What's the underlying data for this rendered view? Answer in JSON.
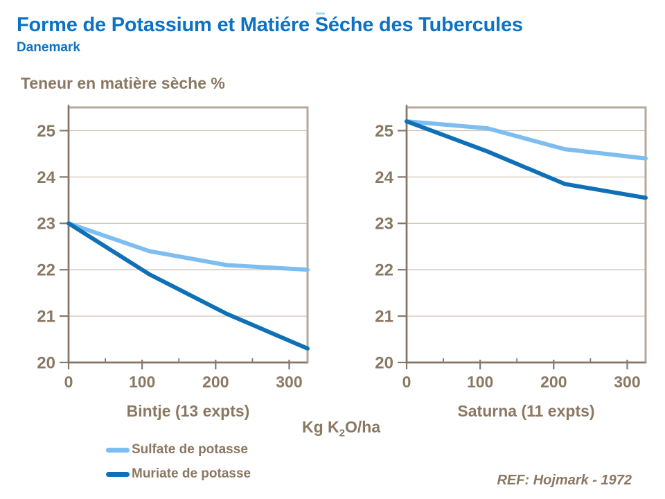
{
  "header": {
    "title": "Forme de Potassium et Matiére Séche des Tubercules",
    "subtitle": "Danemark"
  },
  "y_axis_title": "Teneur en matière sèche %",
  "x_axis_title": {
    "pre": "Kg K",
    "sub": "2",
    "post": "O/ha"
  },
  "legend": [
    {
      "label": "Sulfate de potasse",
      "color": "#7dbdf0"
    },
    {
      "label": "Muriate de potasse",
      "color": "#0f70b8"
    }
  ],
  "footnote": "REF: Hojmark - 1972",
  "colors": {
    "title_blue": "#0d72c4",
    "text": "#8a7862",
    "frame": "#b5a99b",
    "grid": "#cdc3b5",
    "axis": "#87776a",
    "sulfate": "#7dbdf0",
    "muriate": "#0f70b8",
    "background": "#ffffff"
  },
  "chart_data": [
    {
      "type": "line",
      "title": "Bintje (13 expts)",
      "x": [
        0,
        110,
        215,
        325
      ],
      "series": [
        {
          "key": "sulfate",
          "name": "Sulfate de potasse",
          "color": "#7dbdf0",
          "values": [
            23.0,
            22.4,
            22.1,
            22.0
          ]
        },
        {
          "key": "muriate",
          "name": "Muriate de potasse",
          "color": "#0f70b8",
          "values": [
            23.0,
            21.9,
            21.05,
            20.3
          ]
        }
      ],
      "xlim": [
        0,
        325
      ],
      "ylim": [
        20,
        25.5
      ],
      "yticks": [
        20,
        21,
        22,
        23,
        24,
        25
      ],
      "xticks": [
        0,
        100,
        200,
        300
      ],
      "xminor": [
        50,
        150,
        250
      ],
      "grid": "horizontal",
      "legend_position": "below-left"
    },
    {
      "type": "line",
      "title": "Saturna (11 expts)",
      "x": [
        0,
        110,
        215,
        325
      ],
      "series": [
        {
          "key": "sulfate",
          "name": "Sulfate de potasse",
          "color": "#7dbdf0",
          "values": [
            25.2,
            25.05,
            24.6,
            24.4
          ]
        },
        {
          "key": "muriate",
          "name": "Muriate de potasse",
          "color": "#0f70b8",
          "values": [
            25.2,
            24.55,
            23.85,
            23.55
          ]
        }
      ],
      "xlim": [
        0,
        325
      ],
      "ylim": [
        20,
        25.5
      ],
      "yticks": [
        20,
        21,
        22,
        23,
        24,
        25
      ],
      "xticks": [
        0,
        100,
        200,
        300
      ],
      "xminor": [
        50,
        150,
        250
      ],
      "grid": "horizontal",
      "legend_position": "below-left"
    }
  ]
}
